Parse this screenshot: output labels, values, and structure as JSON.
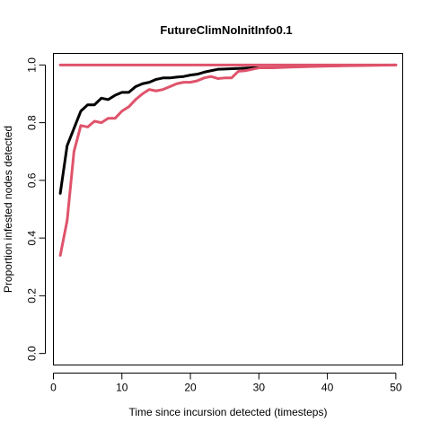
{
  "chart_data": {
    "type": "line",
    "title": "FutureClimNoInitInfo0.1",
    "xlabel": "Time since incursion detected (timesteps)",
    "ylabel": "Proportion infested nodes detected",
    "xlim": [
      0,
      51
    ],
    "ylim": [
      -0.04,
      1.04
    ],
    "xticks": [
      0,
      10,
      20,
      30,
      40,
      50
    ],
    "yticks": [
      0.0,
      0.2,
      0.4,
      0.6,
      0.8,
      1.0
    ],
    "xtick_labels": [
      "0",
      "10",
      "20",
      "30",
      "40",
      "50"
    ],
    "ytick_labels": [
      "0.0",
      "0.2",
      "0.4",
      "0.6",
      "0.8",
      "1.0"
    ],
    "grid": false,
    "series": [
      {
        "color": "#DF536B",
        "x": [
          1,
          50
        ],
        "y": [
          1.0,
          1.0
        ]
      },
      {
        "color": "#000000",
        "x": [
          1,
          2,
          3,
          4,
          5,
          6,
          7,
          8,
          9,
          10,
          11,
          12,
          13,
          14,
          15,
          16,
          17,
          18,
          19,
          20,
          21,
          22,
          23,
          24,
          25,
          26,
          27,
          28,
          29,
          30,
          31,
          32
        ],
        "y": [
          0.555,
          0.72,
          0.78,
          0.84,
          0.862,
          0.862,
          0.885,
          0.88,
          0.895,
          0.905,
          0.905,
          0.925,
          0.935,
          0.94,
          0.95,
          0.955,
          0.955,
          0.958,
          0.96,
          0.965,
          0.968,
          0.975,
          0.98,
          0.985,
          0.986,
          0.987,
          0.988,
          0.989,
          0.99,
          0.99,
          0.99,
          0.99
        ]
      },
      {
        "color": "#DF536B",
        "x": [
          1,
          2,
          3,
          4,
          5,
          6,
          7,
          8,
          9,
          10,
          11,
          12,
          13,
          14,
          15,
          16,
          17,
          18,
          19,
          20,
          21,
          22,
          23,
          24,
          25,
          26,
          27,
          28,
          29,
          30,
          32,
          35,
          38,
          40,
          42,
          45,
          48,
          50
        ],
        "y": [
          0.34,
          0.46,
          0.7,
          0.79,
          0.785,
          0.805,
          0.8,
          0.815,
          0.815,
          0.84,
          0.855,
          0.88,
          0.9,
          0.915,
          0.91,
          0.915,
          0.925,
          0.935,
          0.94,
          0.94,
          0.945,
          0.955,
          0.96,
          0.953,
          0.955,
          0.955,
          0.978,
          0.98,
          0.985,
          0.99,
          0.99,
          0.993,
          0.995,
          0.996,
          0.997,
          0.998,
          0.999,
          1.0
        ]
      }
    ]
  }
}
